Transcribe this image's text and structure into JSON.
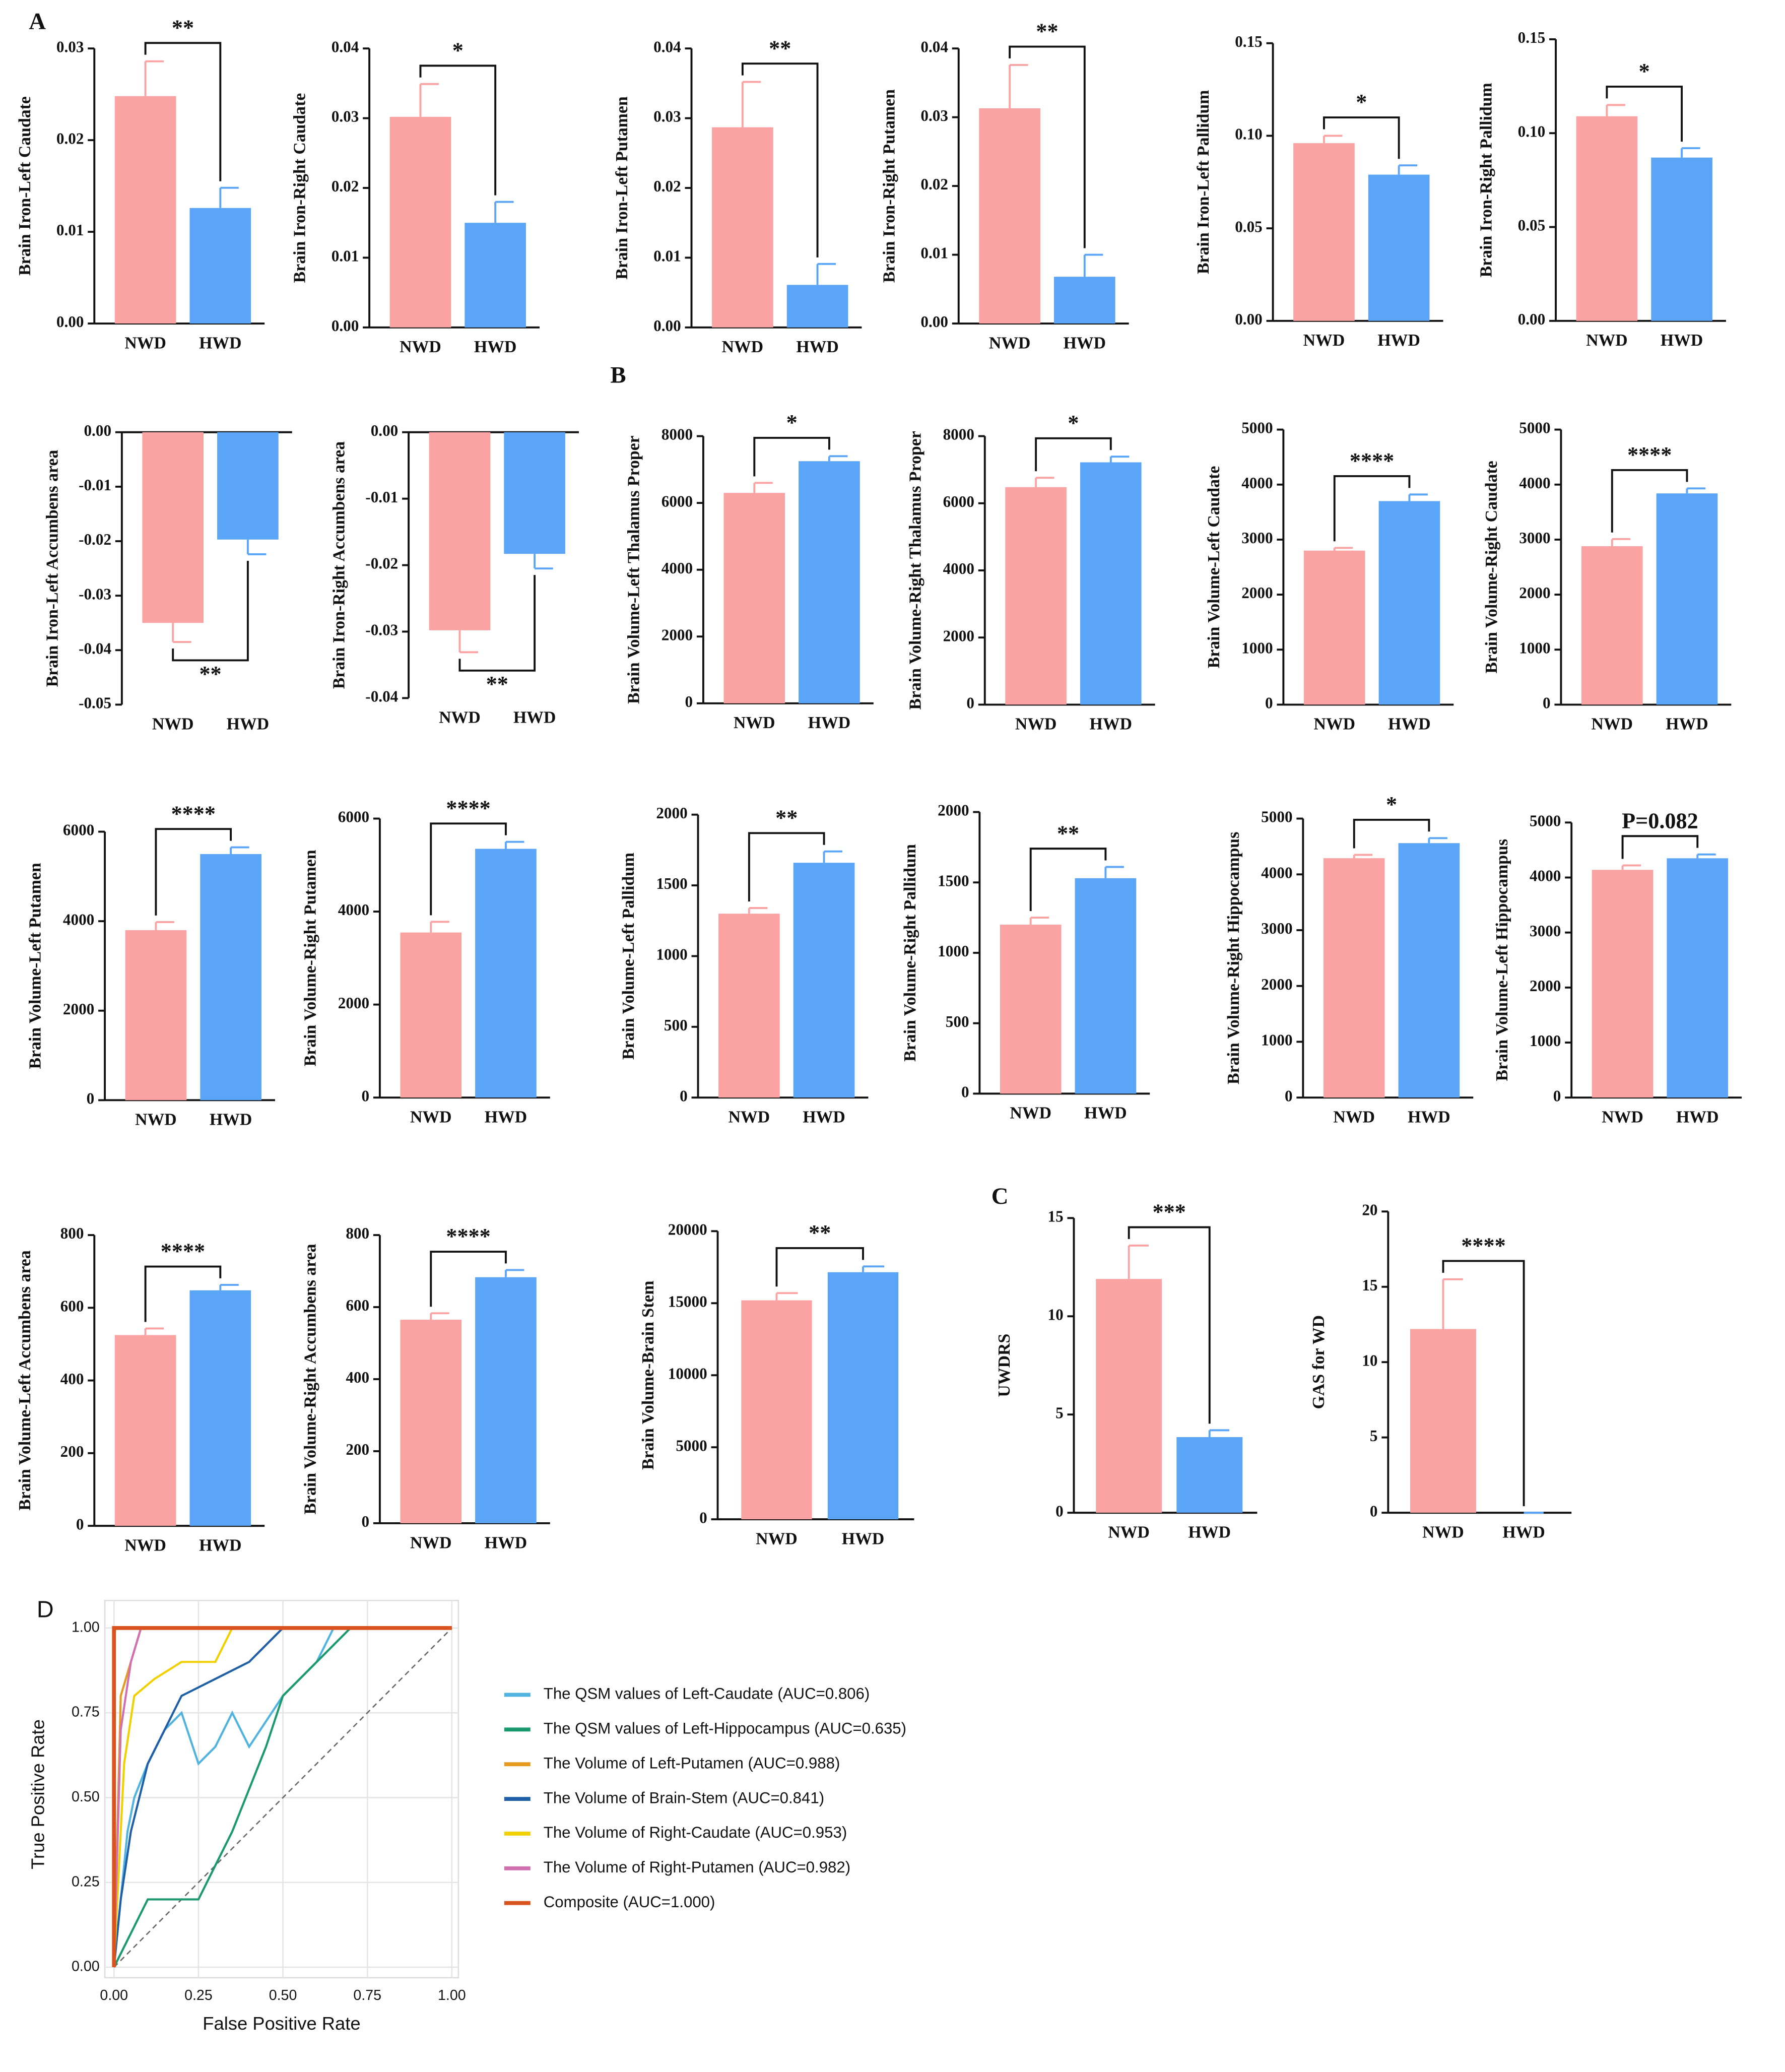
{
  "chart_data": [
    {
      "type": "bar",
      "panel": "A",
      "ylabel": "Brain Iron-Left Caudate",
      "categories": [
        "NWD",
        "HWD"
      ],
      "values": [
        0.0248,
        0.0126
      ],
      "errors": [
        0.0038,
        0.0022
      ],
      "colors": [
        "#fba3a3",
        "#5aa5f8"
      ],
      "ylim": [
        0,
        0.03
      ],
      "yticks": [
        {
          "value": 0,
          "label": "0.00"
        },
        0.01,
        0.02,
        0.03
      ],
      "significance": "**"
    },
    {
      "type": "bar",
      "ylabel": "Brain Iron-Right Caudate",
      "categories": [
        "NWD",
        "HWD"
      ],
      "values": [
        0.0302,
        0.015
      ],
      "errors": [
        0.0047,
        0.003
      ],
      "colors": [
        "#fba3a3",
        "#5aa5f8"
      ],
      "ylim": [
        0,
        0.04
      ],
      "yticks": [
        {
          "value": 0,
          "label": "0.00"
        },
        0.01,
        0.02,
        0.03,
        0.04
      ],
      "significance": "*"
    },
    {
      "type": "bar",
      "ylabel": "Brain Iron-Left Putamen",
      "categories": [
        "NWD",
        "HWD"
      ],
      "values": [
        0.0287,
        0.0061
      ],
      "errors": [
        0.0065,
        0.003
      ],
      "colors": [
        "#fba3a3",
        "#5aa5f8"
      ],
      "ylim": [
        0,
        0.04
      ],
      "yticks": [
        {
          "value": 0,
          "label": "0.00"
        },
        0.01,
        0.02,
        0.03,
        0.04
      ],
      "significance": "**"
    },
    {
      "type": "bar",
      "ylabel": "Brain Iron-Right Putamen",
      "categories": [
        "NWD",
        "HWD"
      ],
      "values": [
        0.0313,
        0.0068
      ],
      "errors": [
        0.0063,
        0.0032
      ],
      "colors": [
        "#fba3a3",
        "#5aa5f8"
      ],
      "ylim": [
        0,
        0.04
      ],
      "yticks": [
        {
          "value": 0,
          "label": "0.00"
        },
        0.01,
        0.02,
        0.03,
        0.04
      ],
      "significance": "**"
    },
    {
      "type": "bar",
      "ylabel": "Brain Iron-Left Pallidum",
      "categories": [
        "NWD",
        "HWD"
      ],
      "values": [
        0.096,
        0.079
      ],
      "errors": [
        0.004,
        0.005
      ],
      "colors": [
        "#fba3a3",
        "#5aa5f8"
      ],
      "ylim": [
        0,
        0.15
      ],
      "yticks": [
        {
          "value": 0,
          "label": "0.00"
        },
        0.05,
        {
          "value": 0.1,
          "label": "0.10"
        },
        0.15
      ],
      "significance": "*"
    },
    {
      "type": "bar",
      "ylabel": "Brain Iron-Right Pallidum",
      "categories": [
        "NWD",
        "HWD"
      ],
      "values": [
        0.109,
        0.087
      ],
      "errors": [
        0.006,
        0.005
      ],
      "colors": [
        "#fba3a3",
        "#5aa5f8"
      ],
      "ylim": [
        0,
        0.15
      ],
      "yticks": [
        {
          "value": 0,
          "label": "0.00"
        },
        0.05,
        {
          "value": 0.1,
          "label": "0.10"
        },
        0.15
      ],
      "significance": "*"
    },
    {
      "type": "bar",
      "ylabel": "Brain Iron-Left Accumbens area",
      "categories": [
        "NWD",
        "HWD"
      ],
      "values": [
        -0.035,
        -0.0197
      ],
      "errors": [
        0.0035,
        0.0027
      ],
      "colors": [
        "#fba3a3",
        "#5aa5f8"
      ],
      "ylim": [
        -0.05,
        0
      ],
      "yticks": [
        {
          "value": 0,
          "label": "0.00"
        },
        -0.01,
        -0.02,
        -0.03,
        -0.04,
        -0.05
      ],
      "significance": "**"
    },
    {
      "type": "bar",
      "ylabel": "Brain Iron-Right Accumbens area",
      "categories": [
        "NWD",
        "HWD"
      ],
      "values": [
        -0.0298,
        -0.0183
      ],
      "errors": [
        0.0033,
        0.0022
      ],
      "colors": [
        "#fba3a3",
        "#5aa5f8"
      ],
      "ylim": [
        -0.04,
        0
      ],
      "yticks": [
        {
          "value": 0,
          "label": "0.00"
        },
        -0.01,
        -0.02,
        -0.03,
        -0.04
      ],
      "significance": "**"
    },
    {
      "type": "bar",
      "panel": "B",
      "ylabel": "Brain Volume-Left Thalamus Proper",
      "categories": [
        "NWD",
        "HWD"
      ],
      "values": [
        6300,
        7250
      ],
      "errors": [
        300,
        150
      ],
      "colors": [
        "#fba3a3",
        "#5aa5f8"
      ],
      "ylim": [
        0,
        8000
      ],
      "yticks": [
        0,
        2000,
        4000,
        6000,
        8000
      ],
      "significance": "*"
    },
    {
      "type": "bar",
      "ylabel": "Brain Volume-Right Thalamus Proper",
      "categories": [
        "NWD",
        "HWD"
      ],
      "values": [
        6480,
        7220
      ],
      "errors": [
        280,
        170
      ],
      "colors": [
        "#fba3a3",
        "#5aa5f8"
      ],
      "ylim": [
        0,
        8000
      ],
      "yticks": [
        0,
        2000,
        4000,
        6000,
        8000
      ],
      "significance": "*"
    },
    {
      "type": "bar",
      "ylabel": "Brain Volume-Left Caudate",
      "categories": [
        "NWD",
        "HWD"
      ],
      "values": [
        2800,
        3700
      ],
      "errors": [
        50,
        120
      ],
      "colors": [
        "#fba3a3",
        "#5aa5f8"
      ],
      "ylim": [
        0,
        5000
      ],
      "yticks": [
        0,
        1000,
        2000,
        3000,
        4000,
        5000
      ],
      "significance": "****"
    },
    {
      "type": "bar",
      "ylabel": "Brain Volume-Right Caudate",
      "categories": [
        "NWD",
        "HWD"
      ],
      "values": [
        2880,
        3840
      ],
      "errors": [
        130,
        90
      ],
      "colors": [
        "#fba3a3",
        "#5aa5f8"
      ],
      "ylim": [
        0,
        5000
      ],
      "yticks": [
        0,
        1000,
        2000,
        3000,
        4000,
        5000
      ],
      "significance": "****"
    },
    {
      "type": "bar",
      "ylabel": "Brain Volume-Left Putamen",
      "categories": [
        "NWD",
        "HWD"
      ],
      "values": [
        3800,
        5500
      ],
      "errors": [
        180,
        150
      ],
      "colors": [
        "#fba3a3",
        "#5aa5f8"
      ],
      "ylim": [
        0,
        6000
      ],
      "yticks": [
        0,
        2000,
        4000,
        6000
      ],
      "significance": "****"
    },
    {
      "type": "bar",
      "ylabel": "Brain Volume-Right Putamen",
      "categories": [
        "NWD",
        "HWD"
      ],
      "values": [
        3550,
        5350
      ],
      "errors": [
        230,
        150
      ],
      "colors": [
        "#fba3a3",
        "#5aa5f8"
      ],
      "ylim": [
        0,
        6000
      ],
      "yticks": [
        0,
        2000,
        4000,
        6000
      ],
      "significance": "****"
    },
    {
      "type": "bar",
      "ylabel": "Brain Volume-Left Pallidum",
      "categories": [
        "NWD",
        "HWD"
      ],
      "values": [
        1300,
        1660
      ],
      "errors": [
        40,
        80
      ],
      "colors": [
        "#fba3a3",
        "#5aa5f8"
      ],
      "ylim": [
        0,
        2000
      ],
      "yticks": [
        0,
        500,
        1000,
        1500,
        2000
      ],
      "significance": "**"
    },
    {
      "type": "bar",
      "ylabel": "Brain Volume-Right Pallidum",
      "categories": [
        "NWD",
        "HWD"
      ],
      "values": [
        1200,
        1530
      ],
      "errors": [
        50,
        80
      ],
      "colors": [
        "#fba3a3",
        "#5aa5f8"
      ],
      "ylim": [
        0,
        2000
      ],
      "yticks": [
        0,
        500,
        1000,
        1500,
        2000
      ],
      "significance": "**"
    },
    {
      "type": "bar",
      "ylabel": "Brain Volume-Right Hippocampus",
      "categories": [
        "NWD",
        "HWD"
      ],
      "values": [
        4290,
        4560
      ],
      "errors": [
        60,
        90
      ],
      "colors": [
        "#fba3a3",
        "#5aa5f8"
      ],
      "ylim": [
        0,
        5000
      ],
      "yticks": [
        0,
        1000,
        2000,
        3000,
        4000,
        5000
      ],
      "significance": "*"
    },
    {
      "type": "bar",
      "ylabel": "Brain Volume-Left Hippocampus",
      "categories": [
        "NWD",
        "HWD"
      ],
      "values": [
        4140,
        4350
      ],
      "errors": [
        80,
        70
      ],
      "colors": [
        "#fba3a3",
        "#5aa5f8"
      ],
      "ylim": [
        0,
        5000
      ],
      "yticks": [
        0,
        1000,
        2000,
        3000,
        4000,
        5000
      ],
      "significance": "P=0.082"
    },
    {
      "type": "bar",
      "ylabel": "Brain Volume-Left Accumbens area",
      "categories": [
        "NWD",
        "HWD"
      ],
      "values": [
        525,
        648
      ],
      "errors": [
        18,
        15
      ],
      "colors": [
        "#fba3a3",
        "#5aa5f8"
      ],
      "ylim": [
        0,
        800
      ],
      "yticks": [
        0,
        200,
        400,
        600,
        800
      ],
      "significance": "****"
    },
    {
      "type": "bar",
      "ylabel": "Brain Volume-Right Accumbens area",
      "categories": [
        "NWD",
        "HWD"
      ],
      "values": [
        565,
        683
      ],
      "errors": [
        18,
        20
      ],
      "colors": [
        "#fba3a3",
        "#5aa5f8"
      ],
      "ylim": [
        0,
        800
      ],
      "yticks": [
        0,
        200,
        400,
        600,
        800
      ],
      "significance": "****"
    },
    {
      "type": "bar",
      "ylabel": "Brain Volume-Brain Stem",
      "categories": [
        "NWD",
        "HWD"
      ],
      "values": [
        15200,
        17150
      ],
      "errors": [
        500,
        400
      ],
      "colors": [
        "#fba3a3",
        "#5aa5f8"
      ],
      "ylim": [
        0,
        20000
      ],
      "yticks": [
        0,
        5000,
        10000,
        15000,
        20000
      ],
      "significance": "**"
    },
    {
      "type": "bar",
      "panel": "C",
      "ylabel": "UWDRS",
      "categories": [
        "NWD",
        "HWD"
      ],
      "values": [
        11.9,
        3.85
      ],
      "errors": [
        1.7,
        0.35
      ],
      "colors": [
        "#fba3a3",
        "#5aa5f8"
      ],
      "ylim": [
        0,
        15
      ],
      "yticks": [
        0,
        5,
        10,
        15
      ],
      "significance": "***"
    },
    {
      "type": "bar",
      "ylabel": "GAS for WD",
      "categories": [
        "NWD",
        "HWD"
      ],
      "values": [
        12.2,
        0
      ],
      "errors": [
        3.3,
        0
      ],
      "colors": [
        "#fba3a3",
        "#5aa5f8"
      ],
      "ylim": [
        0,
        20
      ],
      "yticks": [
        0,
        5,
        10,
        15,
        20
      ],
      "significance": "****"
    },
    {
      "type": "line",
      "panel": "D",
      "xlabel": "False Positive Rate",
      "ylabel": "True Positive Rate",
      "xlim": [
        0,
        1
      ],
      "ylim": [
        0,
        1
      ],
      "xticks": [
        {
          "value": 0,
          "label": "0.00"
        },
        0.25,
        {
          "value": 0.5,
          "label": "0.50"
        },
        0.75,
        {
          "value": 1,
          "label": "1.00"
        }
      ],
      "yticks": [
        {
          "value": 0,
          "label": "0.00"
        },
        0.25,
        {
          "value": 0.5,
          "label": "0.50"
        },
        0.75,
        {
          "value": 1,
          "label": "1.00"
        }
      ],
      "grid": true,
      "series": [
        {
          "name": "The QSM values of Left-Caudate (AUC=0.806)",
          "color": "#4fb3e0",
          "x": [
            0,
            0.02,
            0.04,
            0.06,
            0.1,
            0.15,
            0.2,
            0.25,
            0.3,
            0.35,
            0.4,
            0.5,
            0.6,
            0.65,
            1
          ],
          "y": [
            0,
            0.2,
            0.4,
            0.5,
            0.6,
            0.7,
            0.75,
            0.6,
            0.65,
            0.75,
            0.65,
            0.8,
            0.9,
            1,
            1
          ]
        },
        {
          "name": "The QSM values of Left-Hippocampus (AUC=0.635)",
          "color": "#1a9a6c",
          "x": [
            0,
            0.05,
            0.1,
            0.25,
            0.3,
            0.35,
            0.45,
            0.5,
            0.6,
            0.7,
            0.75,
            1
          ],
          "y": [
            0,
            0.1,
            0.2,
            0.2,
            0.3,
            0.4,
            0.65,
            0.8,
            0.9,
            1,
            1,
            1
          ]
        },
        {
          "name": "The Volume of Left-Putamen (AUC=0.988)",
          "color": "#e69a1e",
          "x": [
            0,
            0.02,
            0.05,
            0.08,
            1
          ],
          "y": [
            0,
            0.8,
            0.9,
            1,
            1
          ]
        },
        {
          "name": "The Volume of Brain-Stem (AUC=0.841)",
          "color": "#1f5fa8",
          "x": [
            0,
            0.02,
            0.05,
            0.1,
            0.15,
            0.2,
            0.3,
            0.4,
            0.45,
            0.5,
            0.6,
            1
          ],
          "y": [
            0,
            0.2,
            0.4,
            0.6,
            0.7,
            0.8,
            0.85,
            0.9,
            0.95,
            1,
            1,
            1
          ]
        },
        {
          "name": "The Volume of Right-Caudate (AUC=0.953)",
          "color": "#f0d000",
          "x": [
            0,
            0.03,
            0.06,
            0.12,
            0.2,
            0.3,
            0.35,
            0.4,
            1
          ],
          "y": [
            0,
            0.6,
            0.8,
            0.85,
            0.9,
            0.9,
            1,
            1,
            1
          ]
        },
        {
          "name": "The Volume of Right-Putamen (AUC=0.982)",
          "color": "#d070b0",
          "x": [
            0,
            0.02,
            0.05,
            0.08,
            0.12,
            1
          ],
          "y": [
            0,
            0.7,
            0.9,
            1,
            1,
            1
          ]
        },
        {
          "name": "Composite (AUC=1.000)",
          "color": "#d9531e",
          "x": [
            0,
            0,
            1
          ],
          "y": [
            0,
            1,
            1
          ]
        }
      ]
    }
  ]
}
